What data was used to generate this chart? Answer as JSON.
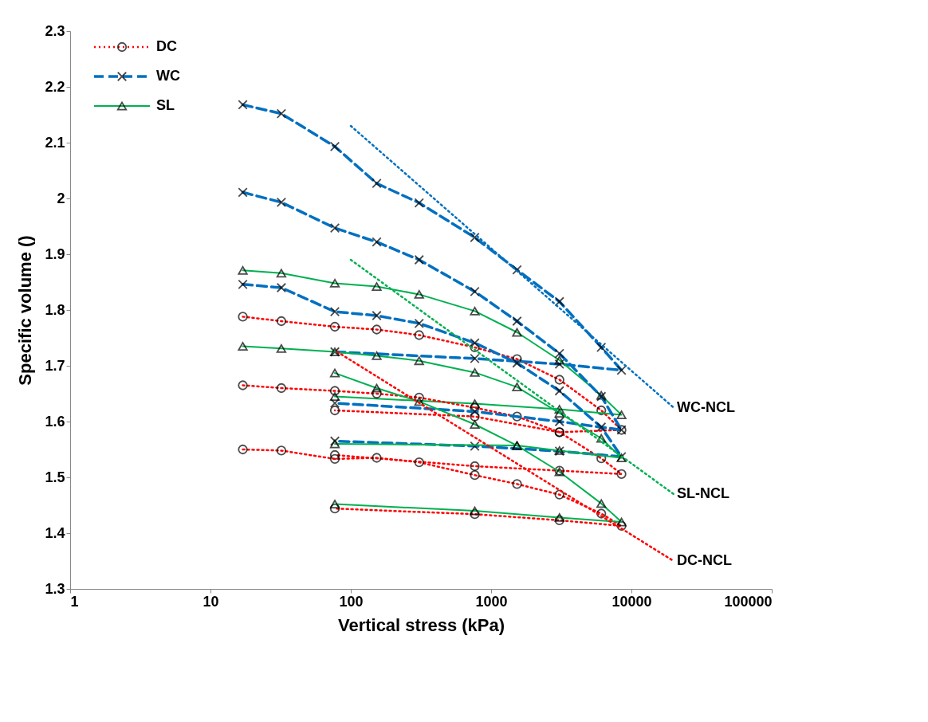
{
  "chart_data": {
    "type": "line",
    "xlabel": "Vertical stress (kPa)",
    "ylabel": "Specific volume ()",
    "log": "x",
    "xlim": [
      1,
      100000
    ],
    "xticks": [
      1,
      10,
      100,
      1000,
      10000,
      100000
    ],
    "ylim": [
      1.3,
      2.3
    ],
    "yticks": [
      1.3,
      1.4,
      1.5,
      1.6,
      1.7,
      1.8,
      1.9,
      2,
      2.1,
      2.2,
      2.3
    ],
    "grid": false,
    "legend": "top left",
    "series": [
      {
        "name": "DC",
        "color": "#ff0000",
        "marker": "circle",
        "line_style": "dotted",
        "x": [
          17,
          32,
          77,
          153,
          307,
          765,
          1530,
          3070,
          6100,
          8500,
          3070,
          765,
          77
        ],
        "values": [
          1.788,
          1.78,
          1.77,
          1.765,
          1.755,
          1.733,
          1.712,
          1.675,
          1.62,
          1.585,
          1.581,
          1.609,
          1.62
        ]
      },
      {
        "name": "WC",
        "color": "#0070c0",
        "marker": "cross",
        "line_style": "dashed",
        "x": [
          17,
          32,
          77,
          153,
          307,
          765,
          1530,
          3070,
          6100,
          8500,
          3070,
          765,
          77
        ],
        "values": [
          2.168,
          2.152,
          2.093,
          2.027,
          1.992,
          1.93,
          1.872,
          1.815,
          1.733,
          1.692,
          1.703,
          1.713,
          1.725
        ]
      },
      {
        "name": "SL",
        "color": "#00b050",
        "marker": "triangle",
        "line_style": "solid",
        "x": [
          17,
          32,
          77,
          153,
          307,
          765,
          1530,
          3070,
          6100,
          8500,
          3070,
          765,
          77
        ],
        "values": [
          1.871,
          1.866,
          1.848,
          1.842,
          1.828,
          1.798,
          1.76,
          1.71,
          1.647,
          1.612,
          1.622,
          1.632,
          1.645
        ]
      },
      {
        "color": "#ff0000",
        "marker": "circle",
        "line_style": "dotted",
        "x": [
          17,
          32,
          77,
          153,
          307,
          765,
          1530,
          3070,
          6100,
          8500,
          3070,
          765,
          77
        ],
        "values": [
          1.665,
          1.66,
          1.655,
          1.65,
          1.643,
          1.625,
          1.609,
          1.581,
          1.534,
          1.506,
          1.512,
          1.52,
          1.54
        ]
      },
      {
        "color": "#ff0000",
        "marker": "circle",
        "line_style": "dotted",
        "x": [
          17,
          32,
          77,
          153,
          307,
          765,
          1530,
          3070,
          6100,
          8500,
          3070,
          765,
          77
        ],
        "values": [
          1.55,
          1.548,
          1.533,
          1.535,
          1.527,
          1.504,
          1.488,
          1.469,
          1.435,
          1.413,
          1.423,
          1.434,
          1.444
        ]
      },
      {
        "color": "#0070c0",
        "marker": "cross",
        "line_style": "dashed",
        "x": [
          17,
          32,
          77,
          153,
          307,
          765,
          1530,
          3070,
          6100,
          8500,
          3070,
          765,
          77
        ],
        "values": [
          2.011,
          1.993,
          1.947,
          1.922,
          1.89,
          1.833,
          1.78,
          1.722,
          1.645,
          1.585,
          1.6,
          1.618,
          1.633
        ]
      },
      {
        "color": "#0070c0",
        "marker": "cross",
        "line_style": "dashed",
        "x": [
          17,
          32,
          77,
          153,
          307,
          765,
          1530,
          3070,
          6100,
          8500,
          3070,
          765,
          77
        ],
        "values": [
          1.846,
          1.84,
          1.797,
          1.79,
          1.776,
          1.741,
          1.705,
          1.655,
          1.59,
          1.537,
          1.547,
          1.556,
          1.565
        ]
      },
      {
        "color": "#00b050",
        "marker": "triangle",
        "line_style": "solid",
        "x": [
          17,
          32,
          77,
          153,
          307,
          765,
          1530,
          3070,
          6100,
          8500,
          3070,
          1530,
          77
        ],
        "values": [
          1.735,
          1.731,
          1.725,
          1.718,
          1.709,
          1.688,
          1.662,
          1.615,
          1.57,
          1.535,
          1.548,
          1.557,
          1.56
        ]
      },
      {
        "color": "#00b050",
        "marker": "triangle",
        "line_style": "solid",
        "x": [
          77,
          153,
          307,
          765,
          1530,
          3070,
          6100,
          8500,
          3070,
          765,
          77
        ],
        "values": [
          1.687,
          1.66,
          1.636,
          1.595,
          1.557,
          1.51,
          1.453,
          1.42,
          1.428,
          1.44,
          1.452
        ]
      },
      {
        "color": "#0070c0",
        "marker": "none",
        "line_style": "dotted",
        "x": [
          100,
          20000
        ],
        "values": [
          2.13,
          1.625
        ]
      },
      {
        "color": "#00b050",
        "marker": "none",
        "line_style": "dotted",
        "x": [
          100,
          20000
        ],
        "values": [
          1.89,
          1.47
        ]
      },
      {
        "color": "#ff0000",
        "marker": "none",
        "line_style": "dotted",
        "x": [
          80,
          20000
        ],
        "values": [
          1.725,
          1.35
        ]
      }
    ],
    "annotations": [
      "WC-NCL",
      "SL-NCL",
      "DC-NCL"
    ]
  }
}
